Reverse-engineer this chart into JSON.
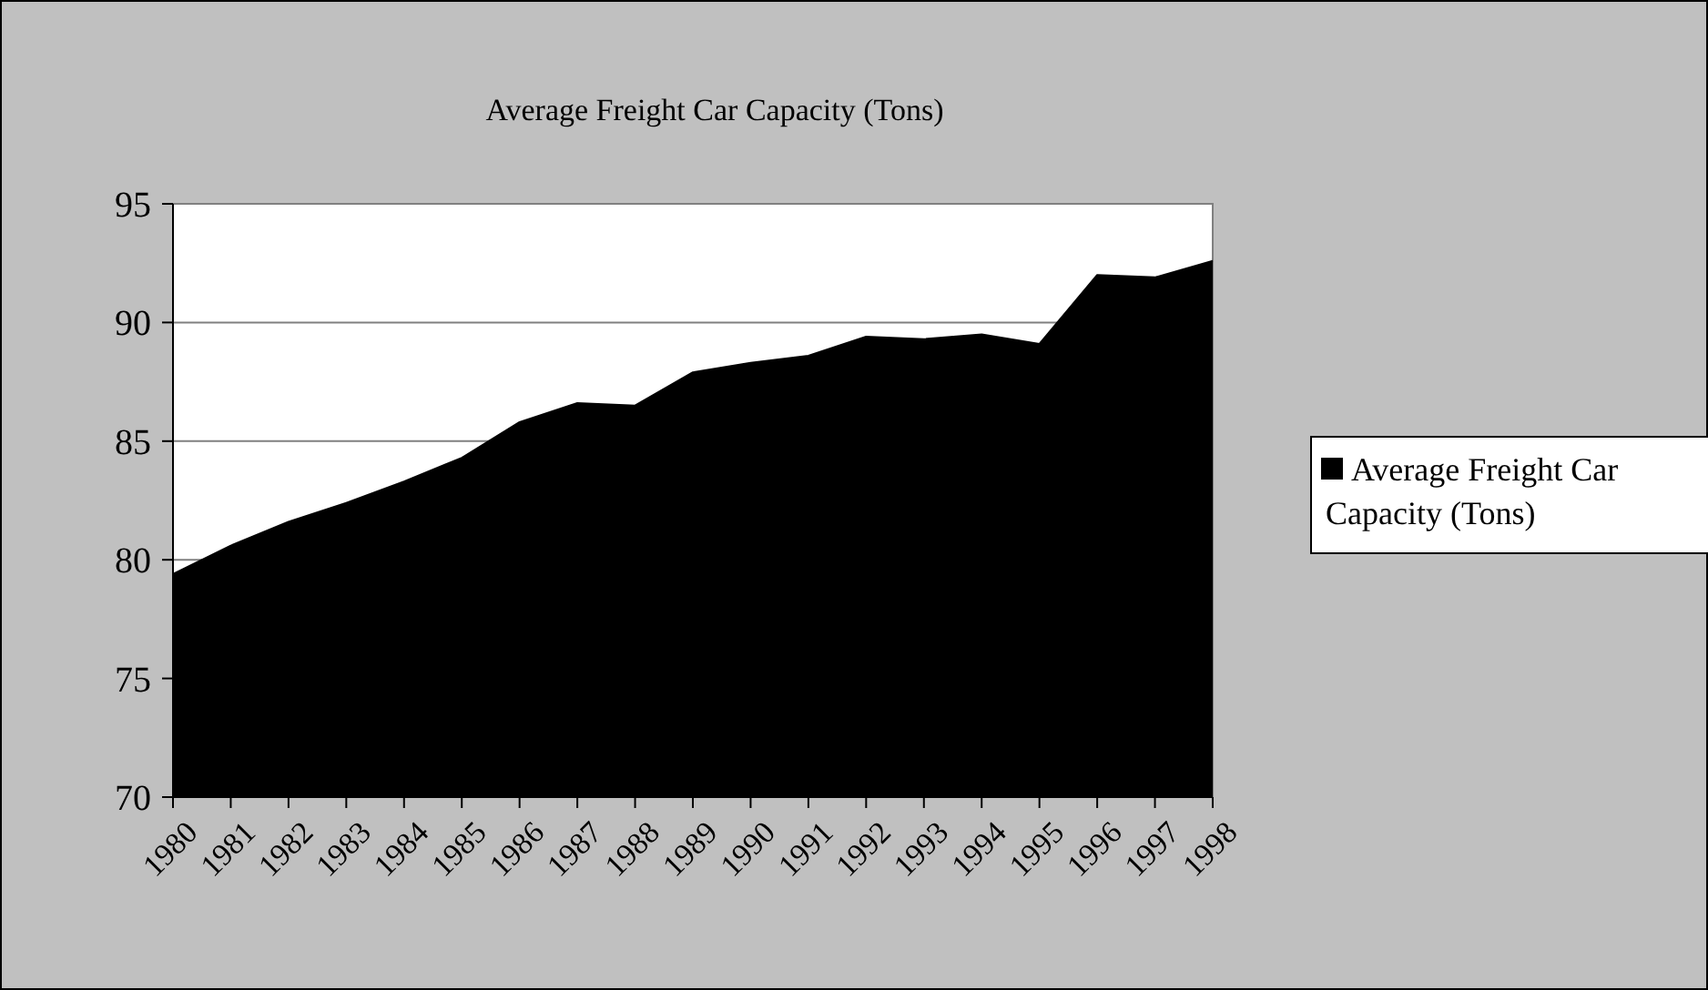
{
  "chart_data": {
    "type": "area",
    "title": "Average Freight Car Capacity (Tons)",
    "categories": [
      "1980",
      "1981",
      "1982",
      "1983",
      "1984",
      "1985",
      "1986",
      "1987",
      "1988",
      "1989",
      "1990",
      "1991",
      "1992",
      "1993",
      "1994",
      "1995",
      "1996",
      "1997",
      "1998"
    ],
    "series": [
      {
        "name": "Average Freight Car Capacity (Tons)",
        "color": "#000000",
        "values": [
          79.4,
          80.6,
          81.6,
          82.4,
          83.3,
          84.3,
          85.8,
          86.6,
          86.5,
          87.9,
          88.3,
          88.6,
          89.4,
          89.3,
          89.5,
          89.1,
          92.0,
          91.9,
          92.6
        ]
      }
    ],
    "ylim": [
      70,
      95
    ],
    "yticks": [
      70,
      75,
      80,
      85,
      90,
      95
    ],
    "grid": "y",
    "legend": "right"
  }
}
